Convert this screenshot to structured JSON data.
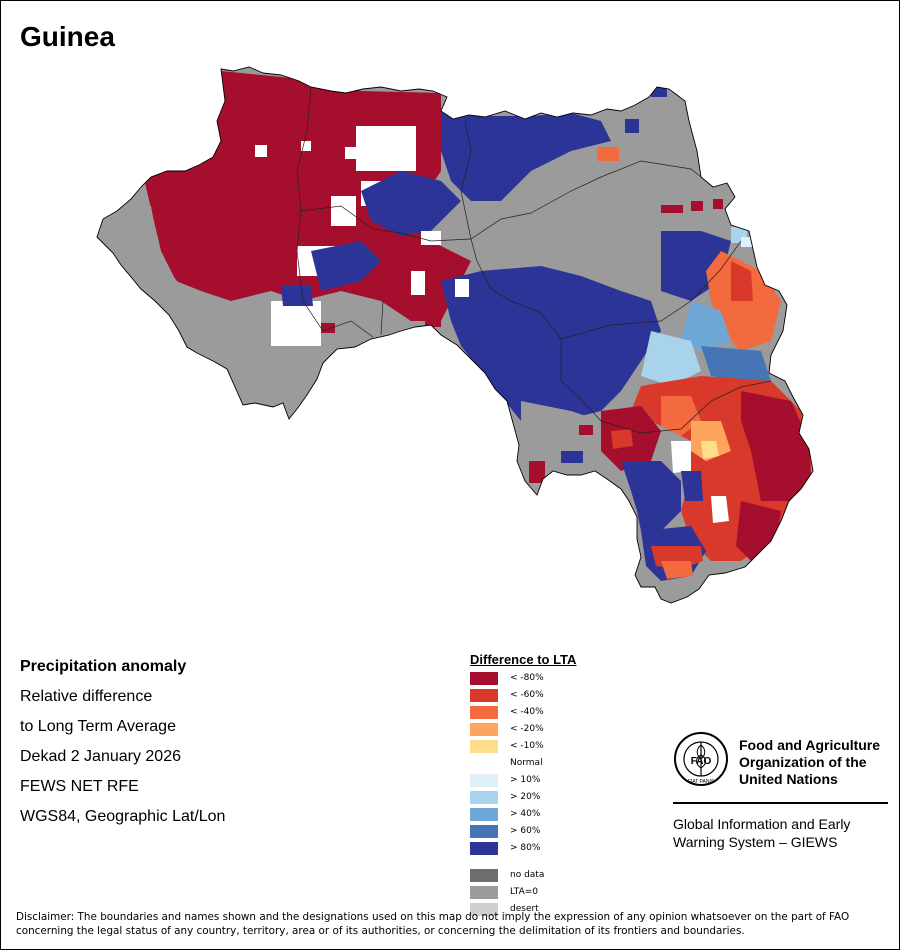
{
  "title": "Guinea",
  "info": {
    "heading": "Precipitation anomaly",
    "line1": "Relative difference",
    "line2": "to Long Term Average",
    "period": "Dekad 2 January 2026",
    "source": "FEWS NET RFE",
    "projection": "WGS84, Geographic Lat/Lon"
  },
  "legend": {
    "title": "Difference to LTA",
    "items": [
      {
        "label": "< -80%",
        "color": "#a50f2d"
      },
      {
        "label": "< -60%",
        "color": "#d8392b"
      },
      {
        "label": "< -40%",
        "color": "#f26a3d"
      },
      {
        "label": "< -20%",
        "color": "#fca55e"
      },
      {
        "label": "< -10%",
        "color": "#fede8a"
      },
      {
        "label": "Normal",
        "color": "#ffffff"
      },
      {
        "label": "> 10%",
        "color": "#dff0f8"
      },
      {
        "label": "> 20%",
        "color": "#a9d3ea"
      },
      {
        "label": "> 40%",
        "color": "#6fa8d6"
      },
      {
        "label": "> 60%",
        "color": "#4575b4"
      },
      {
        "label": "> 80%",
        "color": "#2c3497"
      }
    ],
    "extra": [
      {
        "label": "no data",
        "color": "#6e6e6e"
      },
      {
        "label": "LTA=0",
        "color": "#9b9b9b"
      },
      {
        "label": "desert",
        "color": "#cfcfcf"
      }
    ]
  },
  "logo": {
    "org_line1": "Food and Agriculture",
    "org_line2": "Organization of the",
    "org_line3": "United Nations",
    "seal_text": "FAO",
    "seal_motto": "FIAT PANIS",
    "system_line1": "Global Information and Early",
    "system_line2": "Warning System – GIEWS"
  },
  "disclaimer": "Disclaimer: The boundaries and names shown and the designations used on this map do not imply the expression of any opinion whatsoever on the part of FAO concerning the legal status of any country, territory, area or of its authorities, or concerning the delimitation of its frontiers and boundaries.",
  "colors": {
    "dry_extreme": "#a50f2d",
    "wet_extreme": "#2c3497",
    "lta_zero": "#9b9b9b",
    "normal": "#ffffff"
  }
}
